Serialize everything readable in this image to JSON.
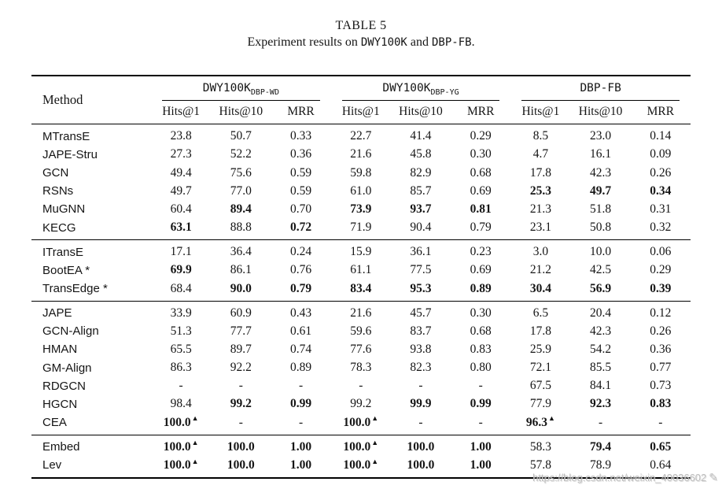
{
  "caption": {
    "title": "TABLE 5",
    "sub_prefix": "Experiment results on ",
    "dataset1": "DWY100K",
    "sub_mid": " and ",
    "dataset2": "DBP-FB",
    "sub_suffix": "."
  },
  "table": {
    "method_header": "Method",
    "groups": [
      {
        "name": "DWY100K",
        "sub": "DBP-WD"
      },
      {
        "name": "DWY100K",
        "sub": "DBP-YG"
      },
      {
        "name": "DBP-FB",
        "sub": ""
      }
    ],
    "subheaders": [
      "Hits@1",
      "Hits@10",
      "MRR"
    ],
    "row_groups": [
      {
        "rows": [
          {
            "method": "MTransE",
            "cells": [
              "23.8",
              "50.7",
              "0.33",
              "22.7",
              "41.4",
              "0.29",
              "8.5",
              "23.0",
              "0.14"
            ]
          },
          {
            "method": "JAPE-Stru",
            "cells": [
              "27.3",
              "52.2",
              "0.36",
              "21.6",
              "45.8",
              "0.30",
              "4.7",
              "16.1",
              "0.09"
            ]
          },
          {
            "method": "GCN",
            "cells": [
              "49.4",
              "75.6",
              "0.59",
              "59.8",
              "82.9",
              "0.68",
              "17.8",
              "42.3",
              "0.26"
            ]
          },
          {
            "method": "RSNs",
            "cells": [
              "49.7",
              "77.0",
              "0.59",
              "61.0",
              "85.7",
              "0.69",
              {
                "v": "25.3",
                "b": true
              },
              {
                "v": "49.7",
                "b": true
              },
              {
                "v": "0.34",
                "b": true
              }
            ]
          },
          {
            "method": "MuGNN",
            "cells": [
              "60.4",
              {
                "v": "89.4",
                "b": true
              },
              "0.70",
              {
                "v": "73.9",
                "b": true
              },
              {
                "v": "93.7",
                "b": true
              },
              {
                "v": "0.81",
                "b": true
              },
              "21.3",
              "51.8",
              "0.31"
            ]
          },
          {
            "method": "KECG",
            "cells": [
              {
                "v": "63.1",
                "b": true
              },
              "88.8",
              {
                "v": "0.72",
                "b": true
              },
              "71.9",
              "90.4",
              "0.79",
              "23.1",
              "50.8",
              "0.32"
            ]
          }
        ]
      },
      {
        "rows": [
          {
            "method": "ITransE",
            "cells": [
              "17.1",
              "36.4",
              "0.24",
              "15.9",
              "36.1",
              "0.23",
              "3.0",
              "10.0",
              "0.06"
            ]
          },
          {
            "method": "BootEA *",
            "cells": [
              {
                "v": "69.9",
                "b": true
              },
              "86.1",
              "0.76",
              "61.1",
              "77.5",
              "0.69",
              "21.2",
              "42.5",
              "0.29"
            ]
          },
          {
            "method": "TransEdge *",
            "cells": [
              "68.4",
              {
                "v": "90.0",
                "b": true
              },
              {
                "v": "0.79",
                "b": true
              },
              {
                "v": "83.4",
                "b": true
              },
              {
                "v": "95.3",
                "b": true
              },
              {
                "v": "0.89",
                "b": true
              },
              {
                "v": "30.4",
                "b": true
              },
              {
                "v": "56.9",
                "b": true
              },
              {
                "v": "0.39",
                "b": true
              }
            ]
          }
        ]
      },
      {
        "rows": [
          {
            "method": "JAPE",
            "cells": [
              "33.9",
              "60.9",
              "0.43",
              "21.6",
              "45.7",
              "0.30",
              "6.5",
              "20.4",
              "0.12"
            ]
          },
          {
            "method": "GCN-Align",
            "cells": [
              "51.3",
              "77.7",
              "0.61",
              "59.6",
              "83.7",
              "0.68",
              "17.8",
              "42.3",
              "0.26"
            ]
          },
          {
            "method": "HMAN",
            "cells": [
              "65.5",
              "89.7",
              "0.74",
              "77.6",
              "93.8",
              "0.83",
              "25.9",
              "54.2",
              "0.36"
            ]
          },
          {
            "method": "GM-Align",
            "cells": [
              "86.3",
              "92.2",
              "0.89",
              "78.3",
              "82.3",
              "0.80",
              "72.1",
              "85.5",
              "0.77"
            ]
          },
          {
            "method": "RDGCN",
            "cells": [
              "-",
              "-",
              "-",
              "-",
              "-",
              "-",
              "67.5",
              "84.1",
              "0.73"
            ]
          },
          {
            "method": "HGCN",
            "cells": [
              "98.4",
              {
                "v": "99.2",
                "b": true
              },
              {
                "v": "0.99",
                "b": true
              },
              "99.2",
              {
                "v": "99.9",
                "b": true
              },
              {
                "v": "0.99",
                "b": true
              },
              "77.9",
              {
                "v": "92.3",
                "b": true
              },
              {
                "v": "0.83",
                "b": true
              }
            ]
          },
          {
            "method": "CEA",
            "cells": [
              {
                "v": "100.0",
                "b": true,
                "t": true
              },
              "-",
              "-",
              {
                "v": "100.0",
                "b": true,
                "t": true
              },
              "-",
              "-",
              {
                "v": "96.3",
                "b": true,
                "t": true
              },
              "-",
              "-"
            ]
          }
        ]
      },
      {
        "rows": [
          {
            "method": "Embed",
            "cells": [
              {
                "v": "100.0",
                "b": true,
                "t": true
              },
              {
                "v": "100.0",
                "b": true
              },
              {
                "v": "1.00",
                "b": true
              },
              {
                "v": "100.0",
                "b": true,
                "t": true
              },
              {
                "v": "100.0",
                "b": true
              },
              {
                "v": "1.00",
                "b": true
              },
              "58.3",
              {
                "v": "79.4",
                "b": true
              },
              {
                "v": "0.65",
                "b": true
              }
            ]
          },
          {
            "method": "Lev",
            "cells": [
              {
                "v": "100.0",
                "b": true,
                "t": true
              },
              {
                "v": "100.0",
                "b": true
              },
              {
                "v": "1.00",
                "b": true
              },
              {
                "v": "100.0",
                "b": true,
                "t": true
              },
              {
                "v": "100.0",
                "b": true
              },
              {
                "v": "1.00",
                "b": true
              },
              "57.8",
              "78.9",
              "0.64"
            ]
          }
        ]
      }
    ]
  },
  "watermark": {
    "text": "https://blog.csdn.net/weixin_40036602",
    "icon": "✎"
  }
}
